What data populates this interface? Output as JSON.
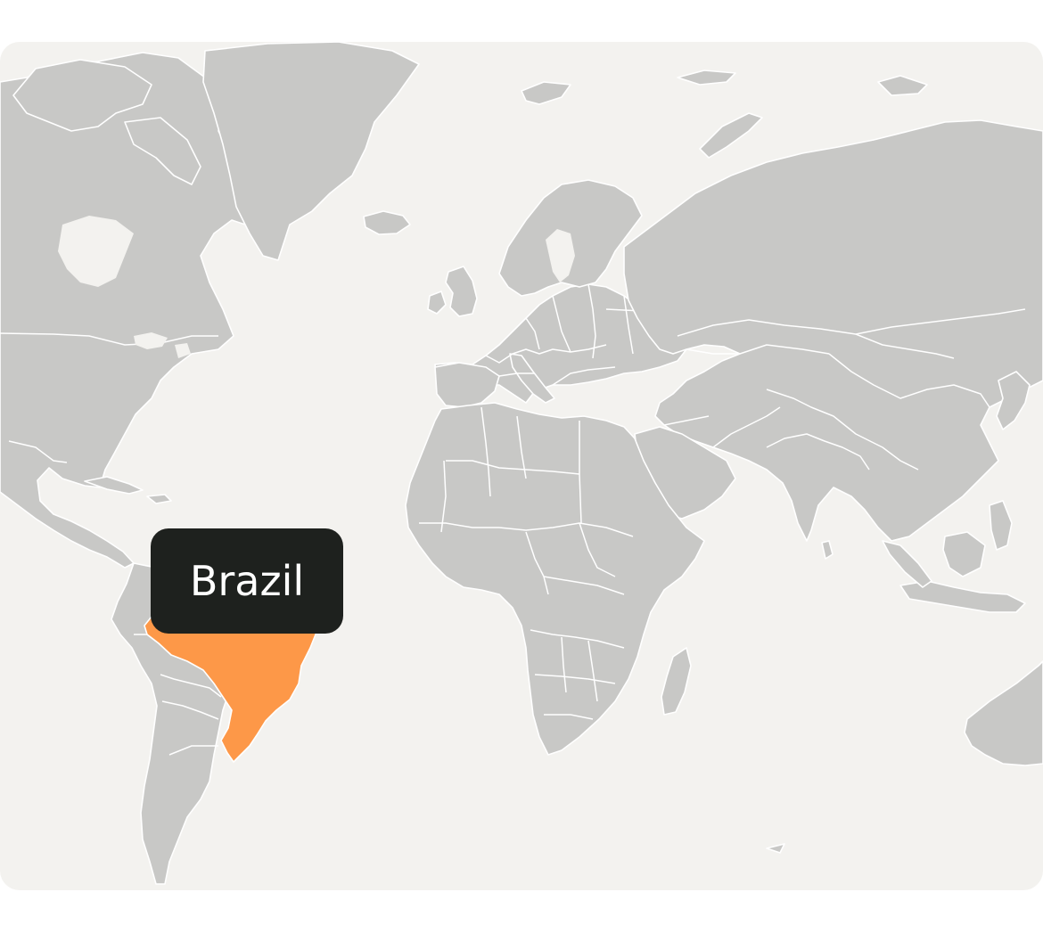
{
  "map": {
    "projection": "world",
    "colors": {
      "ocean": "#f3f2ef",
      "land": "#c8c8c6",
      "border": "#ffffff",
      "highlight": "#fd9848",
      "tooltip_bg": "#1e211e",
      "tooltip_text": "#ffffff"
    },
    "highlighted_country": "Brazil"
  },
  "tooltip": {
    "label": "Brazil"
  }
}
